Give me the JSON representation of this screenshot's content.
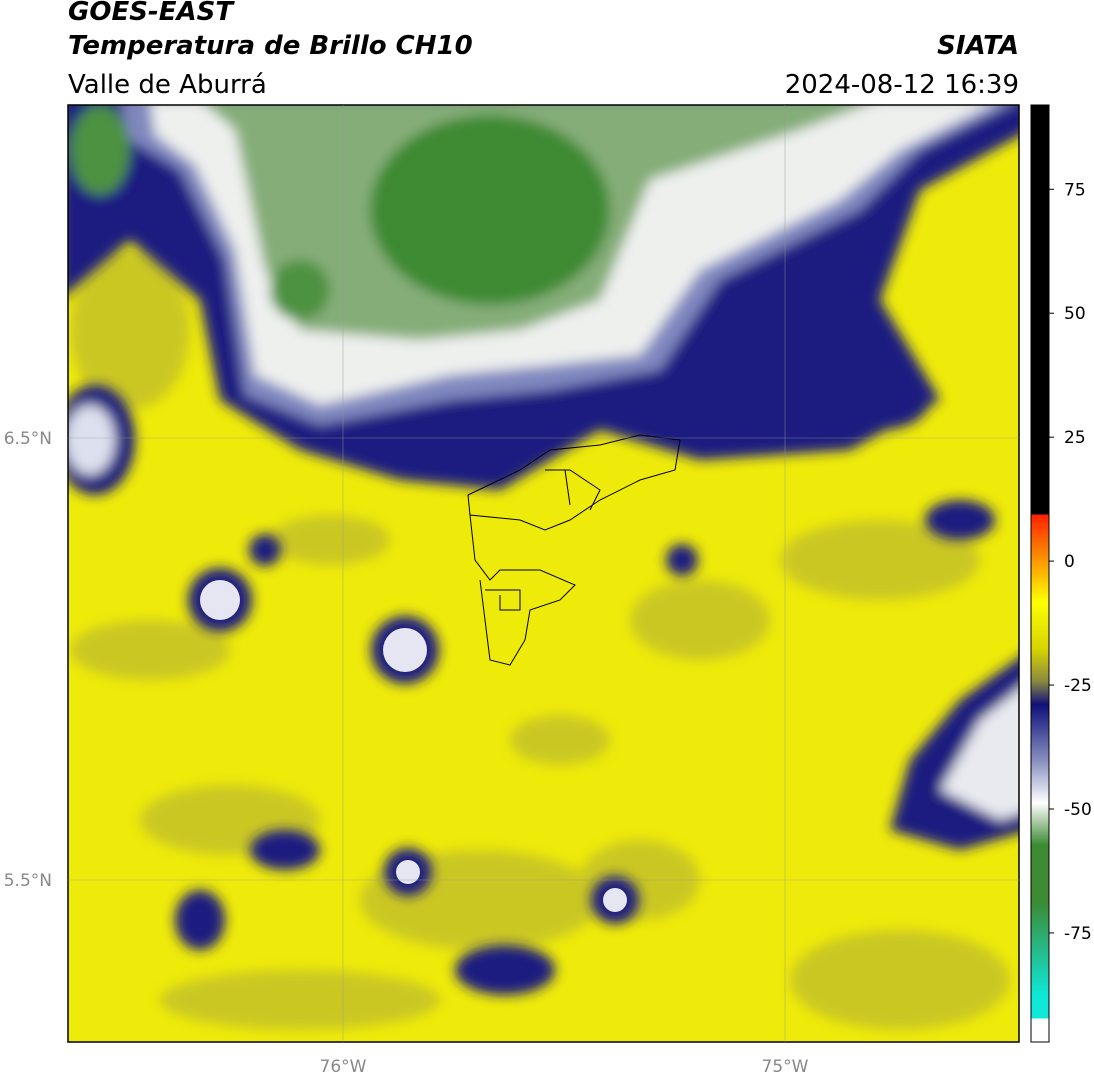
{
  "header": {
    "title": "GOES-EAST",
    "subtitle": "Temperatura de Brillo CH10",
    "organization": "SIATA",
    "region": "Valle de Aburrá",
    "datetime": "2024-08-12 16:39"
  },
  "map": {
    "lat_labels": [
      "6.5°N",
      "5.5°N"
    ],
    "lon_labels": [
      "76°W",
      "75°W"
    ]
  },
  "colorbar": {
    "range": [
      -97,
      92
    ],
    "ticks": [
      75,
      50,
      25,
      0,
      -25,
      -50,
      -75
    ]
  }
}
